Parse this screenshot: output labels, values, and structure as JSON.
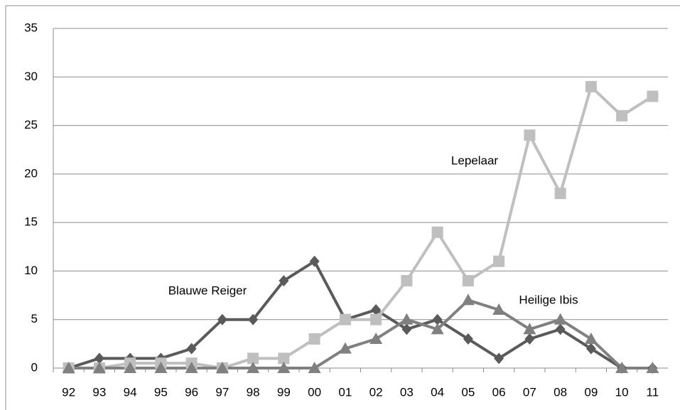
{
  "chart_data": {
    "type": "line",
    "categories": [
      "92",
      "93",
      "94",
      "95",
      "96",
      "97",
      "98",
      "99",
      "00",
      "01",
      "02",
      "03",
      "04",
      "05",
      "06",
      "07",
      "08",
      "09",
      "10",
      "11"
    ],
    "series": [
      {
        "name": "Blauwe Reiger",
        "color": "#5a5a5a",
        "marker": "diamond",
        "values": [
          0,
          1,
          1,
          1,
          2,
          5,
          5,
          9,
          11,
          5,
          6,
          4,
          5,
          3,
          1,
          3,
          4,
          2,
          0,
          0
        ]
      },
      {
        "name": "Lepelaar",
        "color": "#bfbfbf",
        "marker": "square",
        "values": [
          0,
          0,
          0.5,
          0.5,
          0.5,
          0,
          1,
          1,
          3,
          5,
          5,
          9,
          14,
          9,
          11,
          24,
          18,
          29,
          26,
          28
        ]
      },
      {
        "name": "Heilige Ibis",
        "color": "#808080",
        "marker": "triangle",
        "values": [
          0,
          0,
          0,
          0,
          0,
          0,
          0,
          0,
          0,
          2,
          3,
          5,
          4,
          7,
          6,
          4,
          5,
          3,
          0,
          0
        ]
      }
    ],
    "ylim": [
      0,
      35
    ],
    "yticks": [
      0,
      5,
      10,
      15,
      20,
      25,
      30,
      35
    ],
    "grid": true
  }
}
